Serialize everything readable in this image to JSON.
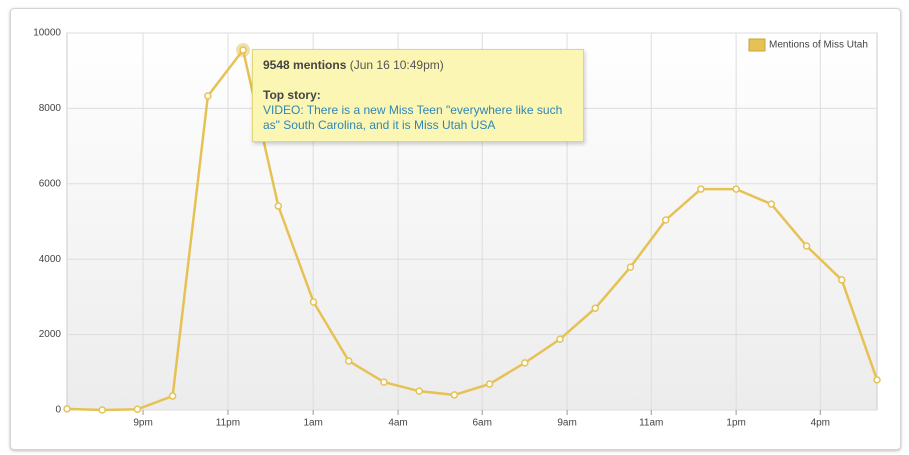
{
  "chart_data": {
    "type": "line",
    "x": [
      0,
      1,
      2,
      3,
      4,
      5,
      6,
      7,
      8,
      9,
      10,
      11,
      12,
      13,
      14,
      15,
      16,
      17,
      18,
      19,
      20,
      21,
      22,
      23
    ],
    "series": [
      {
        "name": "Mentions of Miss Utah",
        "color": "#e6c255",
        "values": [
          30,
          0,
          20,
          370,
          8330,
          9548,
          5410,
          2865,
          1300,
          740,
          500,
          400,
          690,
          1250,
          1880,
          2700,
          3790,
          5040,
          5860,
          5860,
          5460,
          4350,
          3450,
          800
        ]
      }
    ],
    "xlim": [
      0,
      23
    ],
    "xticks": [
      {
        "value": 2.16,
        "label": "9pm"
      },
      {
        "value": 4.57,
        "label": "11pm"
      },
      {
        "value": 6.99,
        "label": "1am"
      },
      {
        "value": 9.4,
        "label": "4am"
      },
      {
        "value": 11.79,
        "label": "6am"
      },
      {
        "value": 14.2,
        "label": "9am"
      },
      {
        "value": 16.59,
        "label": "11am"
      },
      {
        "value": 19.0,
        "label": "1pm"
      },
      {
        "value": 21.39,
        "label": "4pm"
      }
    ],
    "ylim": [
      0,
      10000
    ],
    "yticks": [
      0,
      2000,
      4000,
      6000,
      8000,
      10000
    ],
    "grid": true,
    "legend": "top-right",
    "tooltip": {
      "title": "9548 mentions",
      "date": "(Jun 16 10:49pm)",
      "heading": "Top story:",
      "link": "VIDEO: There is a new Miss Teen \"everywhere like such as\" South Carolina, and it is Miss Utah USA"
    }
  }
}
